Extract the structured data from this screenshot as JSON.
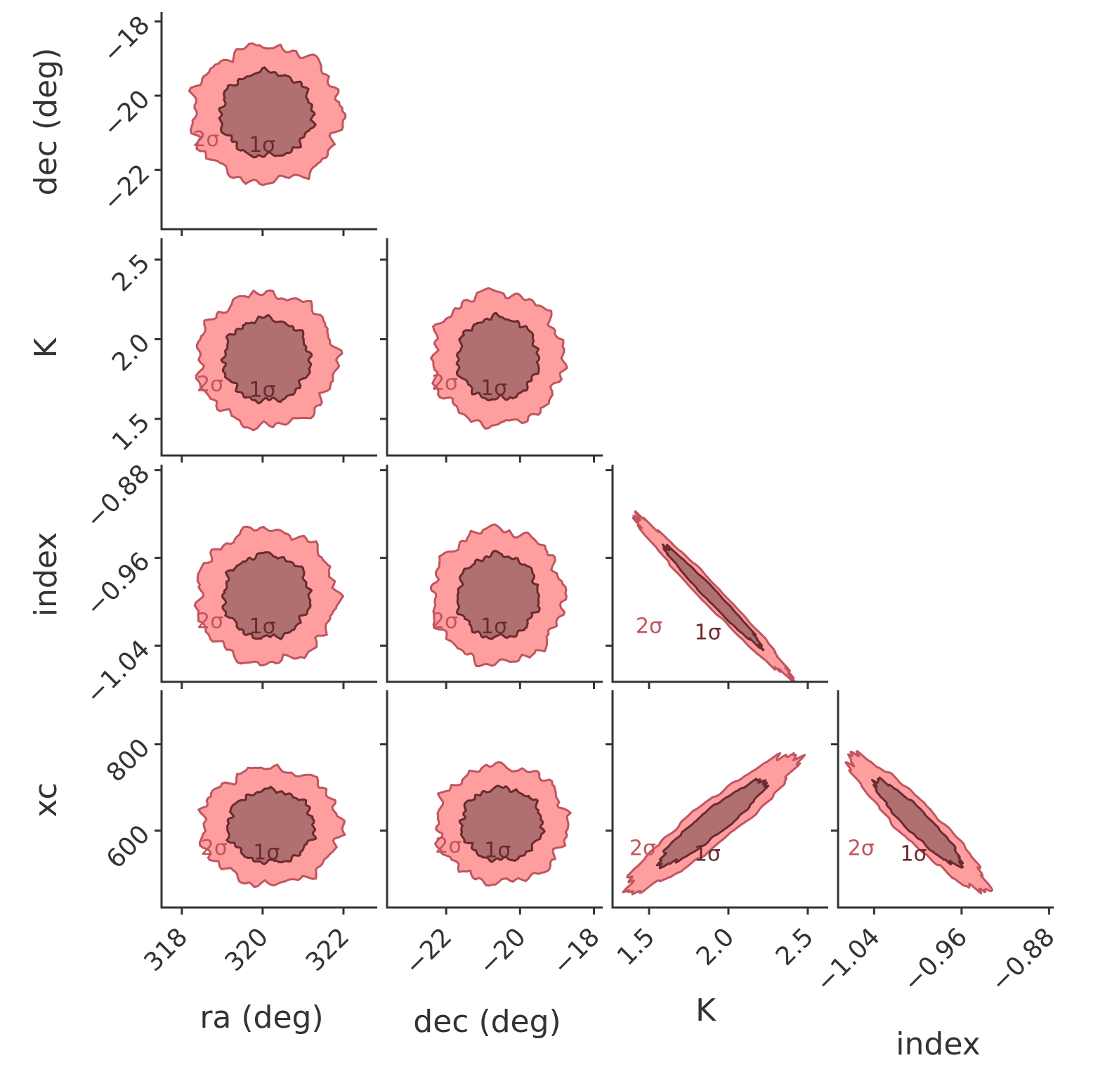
{
  "chart_data": {
    "type": "corner",
    "parameters": [
      "ra (deg)",
      "dec (deg)",
      "K",
      "index",
      "xc"
    ],
    "contour_levels": [
      "1σ",
      "2σ"
    ],
    "colors": {
      "fill_2sigma": "#ff9e9e",
      "fill_1sigma": "#b07070",
      "edge_2sigma": "#c05560",
      "edge_1sigma": "#6a2a30",
      "axes": "#333333"
    },
    "axes": {
      "ra (deg)": {
        "range": [
          317.5,
          322.8
        ],
        "ticks": [
          "318",
          "320",
          "322"
        ],
        "tick_values": [
          318,
          320,
          322
        ]
      },
      "dec (deg)": {
        "range": [
          -23.6,
          -17.8
        ],
        "ticks": [
          "−22",
          "−20",
          "−18"
        ],
        "tick_values": [
          -22,
          -20,
          -18
        ]
      },
      "K": {
        "range": [
          1.27,
          2.62
        ],
        "ticks": [
          "1.5",
          "2.0",
          "2.5"
        ],
        "tick_values": [
          1.5,
          2.0,
          2.5
        ]
      },
      "index": {
        "range": [
          -1.073,
          -0.877
        ],
        "ticks": [
          "−1.04",
          "−0.96",
          "−0.88"
        ],
        "tick_values": [
          -1.04,
          -0.96,
          -0.88
        ]
      },
      "xc": {
        "range": [
          422,
          920
        ],
        "ticks": [
          "600",
          "800"
        ],
        "tick_values": [
          600,
          800
        ]
      }
    },
    "y_tick_labels": {
      "dec (deg)": [
        "−18",
        "−20",
        "−22"
      ],
      "K": [
        "2.5",
        "2.0",
        "1.5"
      ],
      "index": [
        "−0.88",
        "−0.96",
        "−1.04"
      ],
      "xc": [
        "800",
        "600"
      ]
    },
    "panels": [
      {
        "x": "ra (deg)",
        "y": "dec (deg)",
        "center": [
          320.1,
          -20.5
        ],
        "sigma": [
          0.75,
          0.75
        ],
        "rho": 0.0
      },
      {
        "x": "ra (deg)",
        "y": "K",
        "center": [
          320.1,
          1.87
        ],
        "sigma": [
          0.7,
          0.17
        ],
        "rho": 0.0
      },
      {
        "x": "dec (deg)",
        "y": "K",
        "center": [
          -20.6,
          1.88
        ],
        "sigma": [
          0.72,
          0.17
        ],
        "rho": 0.0
      },
      {
        "x": "ra (deg)",
        "y": "index",
        "center": [
          320.1,
          -0.995
        ],
        "sigma": [
          0.7,
          0.025
        ],
        "rho": 0.0
      },
      {
        "x": "dec (deg)",
        "y": "index",
        "center": [
          -20.6,
          -0.995
        ],
        "sigma": [
          0.72,
          0.025
        ],
        "rho": 0.0
      },
      {
        "x": "K",
        "y": "index",
        "center": [
          1.9,
          -0.995
        ],
        "sigma": [
          0.2,
          0.03
        ],
        "rho": -0.985
      },
      {
        "x": "ra (deg)",
        "y": "xc",
        "center": [
          320.2,
          610
        ],
        "sigma": [
          0.7,
          55
        ],
        "rho": 0.0
      },
      {
        "x": "dec (deg)",
        "y": "xc",
        "center": [
          -20.5,
          615
        ],
        "sigma": [
          0.72,
          55
        ],
        "rho": 0.0
      },
      {
        "x": "K",
        "y": "xc",
        "center": [
          1.9,
          618
        ],
        "sigma": [
          0.22,
          65
        ],
        "rho": 0.93
      },
      {
        "x": "index",
        "y": "xc",
        "center": [
          -1.0,
          618
        ],
        "sigma": [
          0.026,
          65
        ],
        "rho": -0.93
      }
    ]
  }
}
